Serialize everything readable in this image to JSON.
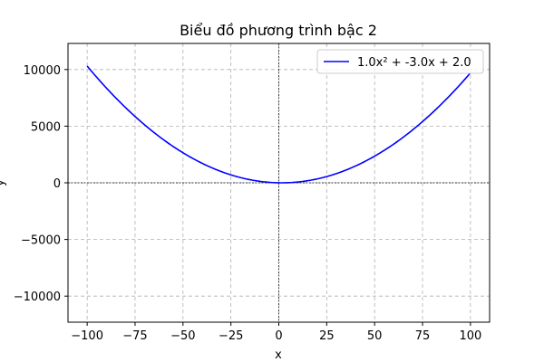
{
  "chart_data": {
    "type": "line",
    "title": "Biểu đồ phương trình bậc 2",
    "xlabel": "x",
    "ylabel": "y",
    "xlim": [
      -110,
      110
    ],
    "ylim": [
      -12300,
      12300
    ],
    "xticks": [
      -100,
      -75,
      -50,
      -25,
      0,
      25,
      50,
      75,
      100
    ],
    "xtick_labels": [
      "−100",
      "−75",
      "−50",
      "−25",
      "0",
      "25",
      "50",
      "75",
      "100"
    ],
    "yticks": [
      -10000,
      -5000,
      0,
      5000,
      10000
    ],
    "ytick_labels": [
      "−10000",
      "−5000",
      "0",
      "5000",
      "10000"
    ],
    "grid": true,
    "zero_lines": true,
    "legend_position": "top-right",
    "series": [
      {
        "name": "1.0x² + -3.0x + 2.0",
        "color": "#0000ff",
        "function": {
          "a": 1.0,
          "b": -3.0,
          "c": 2.0
        },
        "x_range": [
          -100,
          100
        ],
        "x": [
          -100,
          -90,
          -80,
          -70,
          -60,
          -50,
          -40,
          -30,
          -20,
          -10,
          0,
          10,
          20,
          30,
          40,
          50,
          60,
          70,
          80,
          90,
          100
        ],
        "y": [
          10302,
          8372,
          6642,
          5112,
          3782,
          2652,
          1722,
          992,
          462,
          132,
          2,
          72,
          342,
          812,
          1482,
          2352,
          3422,
          4692,
          6162,
          7832,
          9702
        ]
      }
    ]
  }
}
